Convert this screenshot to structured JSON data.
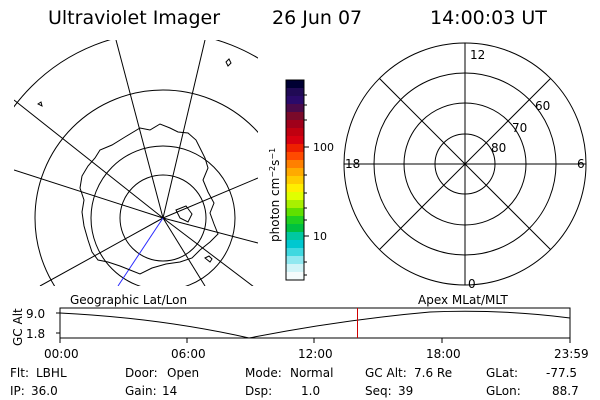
{
  "header": {
    "instrument": "Ultraviolet Imager",
    "date": "26 Jun 07",
    "time": "14:00:03 UT"
  },
  "colorbar": {
    "label_html": "photon cm<tspan baseline-shift='super' font-size='8'>−2</tspan>s<tspan baseline-shift='super' font-size='8'>−1</tspan>",
    "label_text": "photon cm-2s-1",
    "ticks": [
      "100",
      "10"
    ],
    "colors": [
      "#000033",
      "#200a55",
      "#2a0a6a",
      "#4a0a4a",
      "#7a0a2a",
      "#a0001a",
      "#c00010",
      "#d80010",
      "#ee2000",
      "#ff4a00",
      "#ff8000",
      "#ffaa00",
      "#ffcc00",
      "#ffee00",
      "#e0ff00",
      "#a8f000",
      "#60e000",
      "#20d020",
      "#00c040",
      "#00c8a0",
      "#00c8d0",
      "#40d8e0",
      "#90e8f0",
      "#d0f4f8",
      "#f4fbfc"
    ]
  },
  "polar_plot": {
    "top_label": "12",
    "left_label": "18",
    "right_label": "6",
    "bottom_label": "0",
    "lat_labels": [
      "60",
      "70",
      "80"
    ]
  },
  "timeline": {
    "left_label": "Geographic Lat/Lon",
    "right_label": "Apex MLat/MLT",
    "axis_title": "GC Alt",
    "y_ticks": [
      "9.0",
      "1.8"
    ],
    "x_ticks": [
      "00:00",
      "06:00",
      "12:00",
      "18:00",
      "23:59"
    ],
    "current_time_fraction": 0.5834
  },
  "footer": {
    "row1": [
      {
        "label": "Flt:",
        "value": "LBHL"
      },
      {
        "label": "Door:",
        "value": "Open"
      },
      {
        "label": "Mode:",
        "value": "Normal"
      },
      {
        "label": "GC Alt:",
        "value": "7.6 Re"
      },
      {
        "label": "GLat:",
        "value": "-77.5"
      }
    ],
    "row2": [
      {
        "label": "IP:",
        "value": "36.0"
      },
      {
        "label": "Gain:",
        "value": "14"
      },
      {
        "label": "Dsp:",
        "value": "1.0"
      },
      {
        "label": "Seq:",
        "value": "39"
      },
      {
        "label": "GLon:",
        "value": "88.7"
      }
    ]
  }
}
